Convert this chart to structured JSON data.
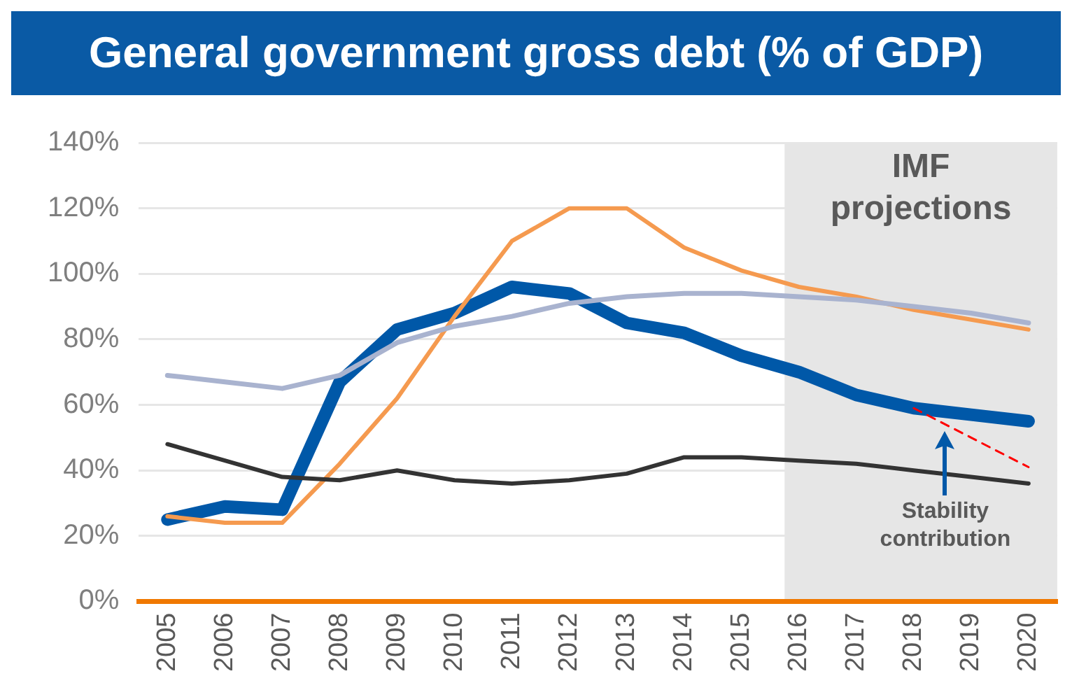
{
  "chart_data": {
    "type": "line",
    "title": "General government gross debt (% of GDP)",
    "categories": [
      "2005",
      "2006",
      "2007",
      "2008",
      "2009",
      "2010",
      "2011",
      "2012",
      "2013",
      "2014",
      "2015",
      "2016",
      "2017",
      "2018",
      "2019",
      "2020"
    ],
    "series": [
      {
        "color": "#0058a8",
        "values": [
          25,
          29,
          28,
          67,
          83,
          88,
          96,
          94,
          85,
          82,
          75,
          70,
          63,
          59,
          57,
          55
        ]
      },
      {
        "color": "#f59a4f",
        "values": [
          26,
          24,
          24,
          42,
          62,
          87,
          110,
          120,
          120,
          108,
          101,
          96,
          93,
          89,
          86,
          83
        ]
      },
      {
        "color": "#a9b3cf",
        "values": [
          69,
          67,
          65,
          69,
          79,
          84,
          87,
          91,
          93,
          94,
          94,
          93,
          92,
          90,
          88,
          85
        ]
      },
      {
        "color": "#333333",
        "values": [
          48,
          43,
          38,
          37,
          40,
          37,
          36,
          37,
          39,
          44,
          44,
          43,
          42,
          40,
          38,
          36
        ]
      },
      {
        "color": "#ff0000",
        "line_style": "dashed",
        "values": [
          null,
          null,
          null,
          null,
          null,
          null,
          null,
          null,
          null,
          null,
          null,
          null,
          null,
          59,
          50,
          41
        ]
      }
    ],
    "ylim": [
      0,
      140
    ],
    "yticks": [
      {
        "value": 0,
        "label": "0%"
      },
      {
        "value": 20,
        "label": "20%"
      },
      {
        "value": 40,
        "label": "40%"
      },
      {
        "value": 60,
        "label": "60%"
      },
      {
        "value": 80,
        "label": "80%"
      },
      {
        "value": 100,
        "label": "100%"
      },
      {
        "value": 120,
        "label": "120%"
      },
      {
        "value": 140,
        "label": "140%"
      }
    ],
    "grid": "y",
    "marker": "none",
    "line_style": "solid",
    "bands": [
      {
        "axis": "x",
        "from": "2016",
        "to": "2020",
        "label": "IMF projections",
        "color": "#e6e6e6"
      }
    ],
    "annotations": [
      "Stability contribution"
    ]
  }
}
